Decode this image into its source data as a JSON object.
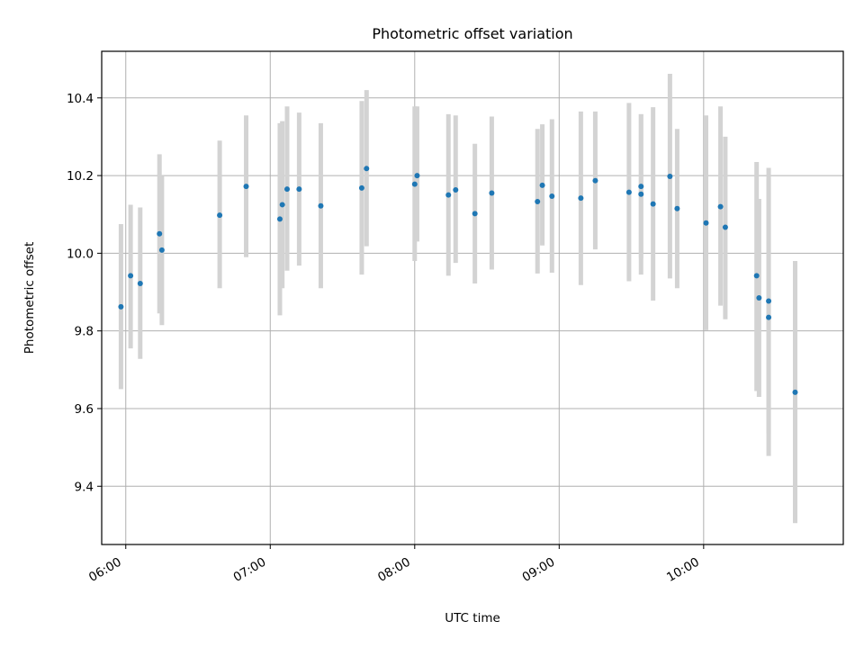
{
  "chart_data": {
    "type": "scatter",
    "title": "Photometric offset variation",
    "xlabel": "UTC time",
    "ylabel": "Photometric offset",
    "x_tick_labels": [
      "06:00",
      "07:00",
      "08:00",
      "09:00",
      "10:00"
    ],
    "y_tick_labels": [
      "9.4",
      "9.6",
      "9.8",
      "10.0",
      "10.2",
      "10.4"
    ],
    "x_ticks": [
      "06:00",
      "07:00",
      "08:00",
      "09:00",
      "10:00"
    ],
    "y_ticks": [
      9.4,
      9.6,
      9.8,
      10.0,
      10.2,
      10.4
    ],
    "xlim": [
      "05:50",
      "10:58"
    ],
    "ylim": [
      9.25,
      10.52
    ],
    "grid": true,
    "colors": {
      "point": "#1f77b4",
      "errorbar": "#d3d3d3",
      "grid": "#b0b0b0"
    },
    "points": [
      {
        "time": "05:58",
        "y": 9.862,
        "ylo": 9.65,
        "yhi": 10.075
      },
      {
        "time": "06:02",
        "y": 9.942,
        "ylo": 9.755,
        "yhi": 10.125
      },
      {
        "time": "06:06",
        "y": 9.922,
        "ylo": 9.728,
        "yhi": 10.118
      },
      {
        "time": "06:14",
        "y": 10.05,
        "ylo": 9.845,
        "yhi": 10.255
      },
      {
        "time": "06:15",
        "y": 10.008,
        "ylo": 9.815,
        "yhi": 10.2
      },
      {
        "time": "06:39",
        "y": 10.098,
        "ylo": 9.91,
        "yhi": 10.29
      },
      {
        "time": "06:50",
        "y": 10.172,
        "ylo": 9.99,
        "yhi": 10.355
      },
      {
        "time": "07:04",
        "y": 10.088,
        "ylo": 9.84,
        "yhi": 10.335
      },
      {
        "time": "07:05",
        "y": 10.125,
        "ylo": 9.91,
        "yhi": 10.34
      },
      {
        "time": "07:07",
        "y": 10.165,
        "ylo": 9.955,
        "yhi": 10.378
      },
      {
        "time": "07:12",
        "y": 10.165,
        "ylo": 9.968,
        "yhi": 10.362
      },
      {
        "time": "07:21",
        "y": 10.122,
        "ylo": 9.91,
        "yhi": 10.335
      },
      {
        "time": "07:38",
        "y": 10.168,
        "ylo": 9.945,
        "yhi": 10.392
      },
      {
        "time": "07:40",
        "y": 10.218,
        "ylo": 10.018,
        "yhi": 10.42
      },
      {
        "time": "08:00",
        "y": 10.178,
        "ylo": 9.98,
        "yhi": 10.378
      },
      {
        "time": "08:01",
        "y": 10.2,
        "ylo": 10.03,
        "yhi": 10.378
      },
      {
        "time": "08:14",
        "y": 10.15,
        "ylo": 9.942,
        "yhi": 10.358
      },
      {
        "time": "08:17",
        "y": 10.163,
        "ylo": 9.975,
        "yhi": 10.355
      },
      {
        "time": "08:25",
        "y": 10.102,
        "ylo": 9.922,
        "yhi": 10.282
      },
      {
        "time": "08:32",
        "y": 10.155,
        "ylo": 9.958,
        "yhi": 10.352
      },
      {
        "time": "08:51",
        "y": 10.133,
        "ylo": 9.948,
        "yhi": 10.32
      },
      {
        "time": "08:53",
        "y": 10.175,
        "ylo": 10.02,
        "yhi": 10.332
      },
      {
        "time": "08:57",
        "y": 10.147,
        "ylo": 9.95,
        "yhi": 10.345
      },
      {
        "time": "09:09",
        "y": 10.142,
        "ylo": 9.918,
        "yhi": 10.365
      },
      {
        "time": "09:15",
        "y": 10.187,
        "ylo": 10.01,
        "yhi": 10.365
      },
      {
        "time": "09:29",
        "y": 10.157,
        "ylo": 9.928,
        "yhi": 10.387
      },
      {
        "time": "09:34",
        "y": 10.172,
        "ylo": 9.988,
        "yhi": 10.358
      },
      {
        "time": "09:34",
        "y": 10.152,
        "ylo": 9.945,
        "yhi": 10.358
      },
      {
        "time": "09:39",
        "y": 10.127,
        "ylo": 9.878,
        "yhi": 10.376
      },
      {
        "time": "09:46",
        "y": 10.198,
        "ylo": 9.935,
        "yhi": 10.462
      },
      {
        "time": "09:49",
        "y": 10.115,
        "ylo": 9.91,
        "yhi": 10.32
      },
      {
        "time": "10:01",
        "y": 10.078,
        "ylo": 9.802,
        "yhi": 10.355
      },
      {
        "time": "10:07",
        "y": 10.12,
        "ylo": 9.865,
        "yhi": 10.378
      },
      {
        "time": "10:09",
        "y": 10.067,
        "ylo": 9.83,
        "yhi": 10.3
      },
      {
        "time": "10:22",
        "y": 9.942,
        "ylo": 9.645,
        "yhi": 10.235
      },
      {
        "time": "10:23",
        "y": 9.885,
        "ylo": 9.63,
        "yhi": 10.14
      },
      {
        "time": "10:27",
        "y": 9.835,
        "ylo": 9.478,
        "yhi": 10.192
      },
      {
        "time": "10:27",
        "y": 9.877,
        "ylo": 9.535,
        "yhi": 10.22
      },
      {
        "time": "10:38",
        "y": 9.642,
        "ylo": 9.305,
        "yhi": 9.98
      }
    ]
  }
}
